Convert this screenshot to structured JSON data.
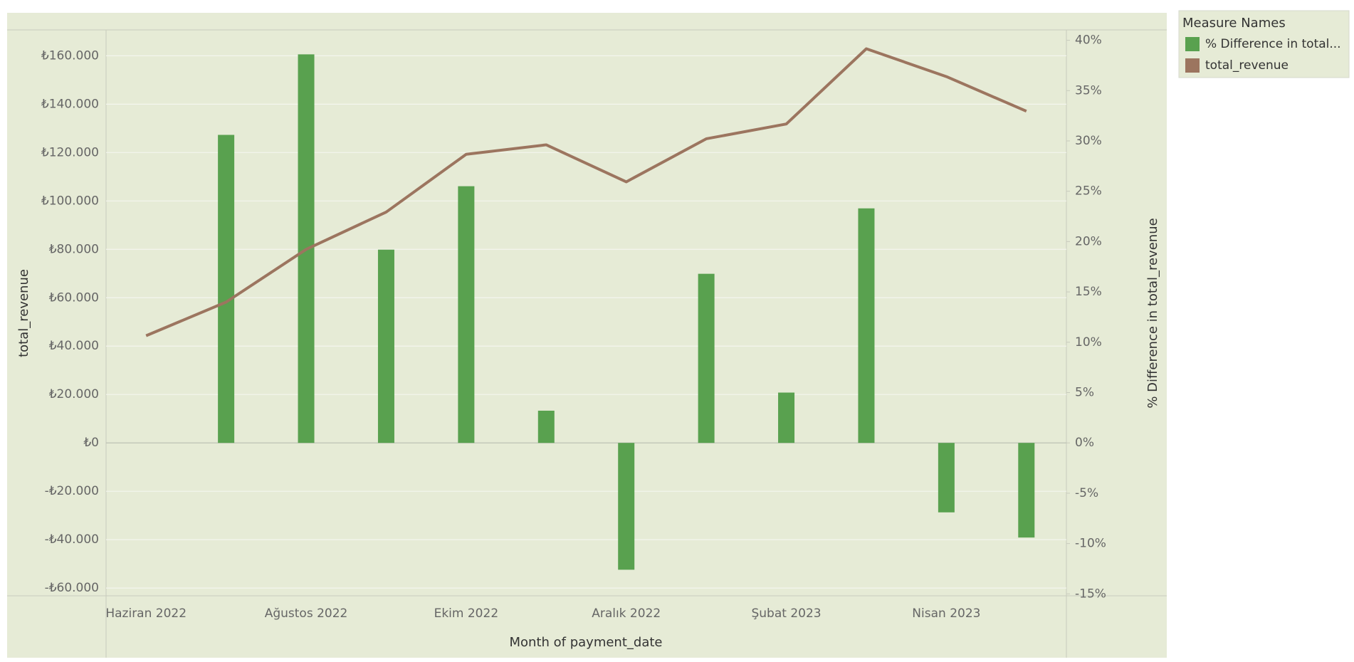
{
  "chart_data": {
    "type": "bar-line",
    "x_label": "Month of payment_date",
    "y_label": "total_revenue",
    "y2_label": "% Difference in total_revenue",
    "legend_title": "Measure Names",
    "legend_position": "right",
    "grid": true,
    "categories": [
      "Haziran 2022",
      null,
      "Ağustos 2022",
      null,
      "Ekim 2022",
      null,
      "Aralık 2022",
      null,
      "Şubat 2023",
      null,
      "Nisan 2023",
      null
    ],
    "series": [
      {
        "name": "% Difference in total...",
        "type": "bar",
        "axis": "y2",
        "color": "#59a14f",
        "values": [
          null,
          30.6,
          38.6,
          19.2,
          25.5,
          3.2,
          -12.6,
          16.8,
          5.0,
          23.3,
          -6.9,
          -9.4
        ]
      },
      {
        "name": "total_revenue",
        "type": "line",
        "color": "#9c755f",
        "values": [
          44300,
          58200,
          80000,
          95400,
          119300,
          123200,
          107900,
          125700,
          131800,
          162900,
          151400,
          137100
        ]
      }
    ],
    "ylim": [
      -63200,
      170700
    ],
    "yticks": [
      {
        "value": -60000,
        "label": "-₺60.000"
      },
      {
        "value": -40000,
        "label": "-₺40.000"
      },
      {
        "value": -20000,
        "label": "-₺20.000"
      },
      {
        "value": 0,
        "label": "₺0"
      },
      {
        "value": 20000,
        "label": "₺20.000"
      },
      {
        "value": 40000,
        "label": "₺40.000"
      },
      {
        "value": 60000,
        "label": "₺60.000"
      },
      {
        "value": 80000,
        "label": "₺80.000"
      },
      {
        "value": 100000,
        "label": "₺100.000"
      },
      {
        "value": 120000,
        "label": "₺120.000"
      },
      {
        "value": 140000,
        "label": "₺140.000"
      },
      {
        "value": 160000,
        "label": "₺160.000"
      }
    ],
    "y2lim": [
      -15.19,
      41.03
    ],
    "y2ticks": [
      {
        "value": -15,
        "label": "-15%"
      },
      {
        "value": -10,
        "label": "-10%"
      },
      {
        "value": -5,
        "label": "-5%"
      },
      {
        "value": 0,
        "label": "0%"
      },
      {
        "value": 5,
        "label": "5%"
      },
      {
        "value": 10,
        "label": "10%"
      },
      {
        "value": 15,
        "label": "15%"
      },
      {
        "value": 20,
        "label": "20%"
      },
      {
        "value": 25,
        "label": "25%"
      },
      {
        "value": 30,
        "label": "30%"
      },
      {
        "value": 35,
        "label": "35%"
      },
      {
        "value": 40,
        "label": "40%"
      }
    ]
  }
}
